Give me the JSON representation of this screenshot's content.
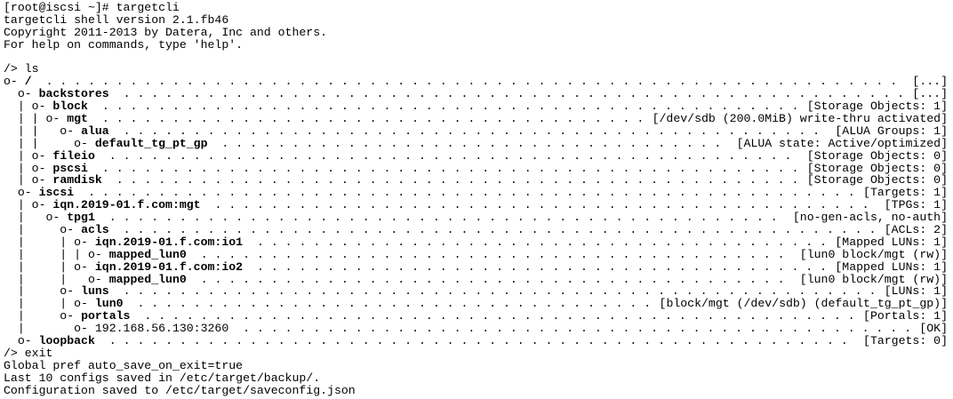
{
  "terminal": {
    "lines": [
      {
        "kind": "plain",
        "text": "[root@iscsi ~]# targetcli"
      },
      {
        "kind": "plain",
        "text": "targetcli shell version 2.1.fb46"
      },
      {
        "kind": "plain",
        "text": "Copyright 2011-2013 by Datera, Inc and others."
      },
      {
        "kind": "plain",
        "text": "For help on commands, type 'help'."
      },
      {
        "kind": "blank",
        "text": ""
      },
      {
        "kind": "plain",
        "text": "/> ls"
      },
      {
        "kind": "tree",
        "prefix": "o- ",
        "name": "/",
        "detail": "[...]"
      },
      {
        "kind": "tree",
        "prefix": "  o- ",
        "name": "backstores",
        "detail": "[...]"
      },
      {
        "kind": "tree",
        "prefix": "  | o- ",
        "name": "block",
        "detail": "[Storage Objects: 1]"
      },
      {
        "kind": "tree",
        "prefix": "  | | o- ",
        "name": "mgt",
        "detail": "[/dev/sdb (200.0MiB) write-thru activated]"
      },
      {
        "kind": "tree",
        "prefix": "  | |   o- ",
        "name": "alua",
        "detail": "[ALUA Groups: 1]"
      },
      {
        "kind": "tree",
        "prefix": "  | |     o- ",
        "name": "default_tg_pt_gp",
        "detail": "[ALUA state: Active/optimized]"
      },
      {
        "kind": "tree",
        "prefix": "  | o- ",
        "name": "fileio",
        "detail": "[Storage Objects: 0]"
      },
      {
        "kind": "tree",
        "prefix": "  | o- ",
        "name": "pscsi",
        "detail": "[Storage Objects: 0]"
      },
      {
        "kind": "tree",
        "prefix": "  | o- ",
        "name": "ramdisk",
        "detail": "[Storage Objects: 0]"
      },
      {
        "kind": "tree",
        "prefix": "  o- ",
        "name": "iscsi",
        "detail": "[Targets: 1]"
      },
      {
        "kind": "tree",
        "prefix": "  | o- ",
        "name": "iqn.2019-01.f.com:mgt",
        "detail": "[TPGs: 1]"
      },
      {
        "kind": "tree",
        "prefix": "  |   o- ",
        "name": "tpg1",
        "detail": "[no-gen-acls, no-auth]"
      },
      {
        "kind": "tree",
        "prefix": "  |     o- ",
        "name": "acls",
        "detail": "[ACLs: 2]"
      },
      {
        "kind": "tree",
        "prefix": "  |     | o- ",
        "name": "iqn.2019-01.f.com:io1",
        "detail": "[Mapped LUNs: 1]"
      },
      {
        "kind": "tree",
        "prefix": "  |     | | o- ",
        "name": "mapped_lun0",
        "detail": "[lun0 block/mgt (rw)]"
      },
      {
        "kind": "tree",
        "prefix": "  |     | o- ",
        "name": "iqn.2019-01.f.com:io2",
        "detail": "[Mapped LUNs: 1]"
      },
      {
        "kind": "tree",
        "prefix": "  |     |   o- ",
        "name": "mapped_lun0",
        "detail": "[lun0 block/mgt (rw)]"
      },
      {
        "kind": "tree",
        "prefix": "  |     o- ",
        "name": "luns",
        "detail": "[LUNs: 1]"
      },
      {
        "kind": "tree",
        "prefix": "  |     | o- ",
        "name": "lun0",
        "detail": "[block/mgt (/dev/sdb) (default_tg_pt_gp)]"
      },
      {
        "kind": "tree",
        "prefix": "  |     o- ",
        "name": "portals",
        "detail": "[Portals: 1]"
      },
      {
        "kind": "tree",
        "prefix": "  |       o- ",
        "name": "192.168.56.130:3260",
        "detail": "[OK]",
        "plain_name": true
      },
      {
        "kind": "tree",
        "prefix": "  o- ",
        "name": "loopback",
        "detail": "[Targets: 0]"
      },
      {
        "kind": "plain",
        "text": "/> exit"
      },
      {
        "kind": "plain",
        "text": "Global pref auto_save_on_exit=true"
      },
      {
        "kind": "plain",
        "text": "Last 10 configs saved in /etc/target/backup/."
      },
      {
        "kind": "plain",
        "text": "Configuration saved to /etc/target/saveconfig.json"
      }
    ]
  },
  "colors": {
    "background": "#ffffff",
    "text": "#000000"
  }
}
